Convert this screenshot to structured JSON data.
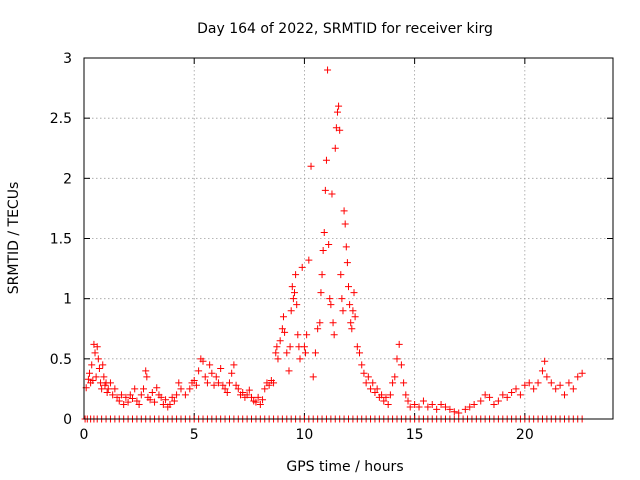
{
  "chart_data": {
    "type": "scatter",
    "title": "Day 164 of 2022, SRMTID for receiver kirg",
    "xlabel": "GPS time / hours",
    "ylabel": "SRMTID / TECUs",
    "xlim": [
      0,
      24
    ],
    "ylim": [
      0,
      3
    ],
    "xticks": [
      0,
      5,
      10,
      15,
      20
    ],
    "xtick_labels": [
      "0",
      "5",
      "10",
      "15",
      "20"
    ],
    "yticks": [
      0,
      0.5,
      1,
      1.5,
      2,
      2.5,
      3
    ],
    "ytick_labels": [
      "0",
      "0.5",
      "1",
      "1.5",
      "2",
      "2.5",
      "3"
    ],
    "grid": true,
    "marker": "+",
    "color": "#ff0000",
    "series": [
      {
        "name": "SRMTID",
        "points": [
          [
            0.1,
            0.26
          ],
          [
            0.2,
            0.33
          ],
          [
            0.25,
            0.38
          ],
          [
            0.3,
            0.3
          ],
          [
            0.35,
            0.45
          ],
          [
            0.4,
            0.32
          ],
          [
            0.45,
            0.62
          ],
          [
            0.5,
            0.55
          ],
          [
            0.55,
            0.35
          ],
          [
            0.6,
            0.6
          ],
          [
            0.65,
            0.5
          ],
          [
            0.7,
            0.42
          ],
          [
            0.75,
            0.3
          ],
          [
            0.8,
            0.25
          ],
          [
            0.85,
            0.45
          ],
          [
            0.9,
            0.35
          ],
          [
            0.95,
            0.28
          ],
          [
            1.0,
            0.3
          ],
          [
            1.05,
            0.22
          ],
          [
            1.1,
            0.25
          ],
          [
            1.2,
            0.3
          ],
          [
            1.3,
            0.2
          ],
          [
            1.4,
            0.25
          ],
          [
            1.5,
            0.18
          ],
          [
            1.6,
            0.15
          ],
          [
            1.7,
            0.2
          ],
          [
            1.8,
            0.12
          ],
          [
            1.9,
            0.18
          ],
          [
            2.0,
            0.14
          ],
          [
            2.1,
            0.2
          ],
          [
            2.2,
            0.17
          ],
          [
            2.3,
            0.25
          ],
          [
            2.4,
            0.15
          ],
          [
            2.5,
            0.12
          ],
          [
            2.6,
            0.2
          ],
          [
            2.7,
            0.25
          ],
          [
            2.8,
            0.4
          ],
          [
            2.85,
            0.35
          ],
          [
            2.9,
            0.18
          ],
          [
            3.0,
            0.16
          ],
          [
            3.1,
            0.22
          ],
          [
            3.2,
            0.14
          ],
          [
            3.3,
            0.26
          ],
          [
            3.4,
            0.2
          ],
          [
            3.5,
            0.18
          ],
          [
            3.6,
            0.12
          ],
          [
            3.7,
            0.16
          ],
          [
            3.8,
            0.1
          ],
          [
            3.9,
            0.12
          ],
          [
            4.0,
            0.18
          ],
          [
            4.1,
            0.15
          ],
          [
            4.2,
            0.2
          ],
          [
            4.3,
            0.3
          ],
          [
            4.4,
            0.25
          ],
          [
            4.6,
            0.2
          ],
          [
            4.8,
            0.25
          ],
          [
            4.9,
            0.3
          ],
          [
            5.0,
            0.32
          ],
          [
            5.1,
            0.28
          ],
          [
            5.2,
            0.4
          ],
          [
            5.3,
            0.5
          ],
          [
            5.4,
            0.48
          ],
          [
            5.5,
            0.35
          ],
          [
            5.6,
            0.3
          ],
          [
            5.7,
            0.45
          ],
          [
            5.8,
            0.38
          ],
          [
            5.9,
            0.28
          ],
          [
            6.0,
            0.35
          ],
          [
            6.1,
            0.3
          ],
          [
            6.2,
            0.42
          ],
          [
            6.3,
            0.28
          ],
          [
            6.4,
            0.25
          ],
          [
            6.5,
            0.22
          ],
          [
            6.6,
            0.3
          ],
          [
            6.7,
            0.38
          ],
          [
            6.8,
            0.45
          ],
          [
            6.9,
            0.28
          ],
          [
            7.0,
            0.25
          ],
          [
            7.1,
            0.2
          ],
          [
            7.2,
            0.22
          ],
          [
            7.3,
            0.18
          ],
          [
            7.4,
            0.2
          ],
          [
            7.5,
            0.24
          ],
          [
            7.6,
            0.18
          ],
          [
            7.7,
            0.15
          ],
          [
            7.8,
            0.14
          ],
          [
            7.9,
            0.18
          ],
          [
            8.0,
            0.12
          ],
          [
            8.1,
            0.16
          ],
          [
            8.2,
            0.25
          ],
          [
            8.3,
            0.3
          ],
          [
            8.4,
            0.28
          ],
          [
            8.5,
            0.32
          ],
          [
            8.6,
            0.3
          ],
          [
            8.7,
            0.55
          ],
          [
            8.75,
            0.6
          ],
          [
            8.8,
            0.5
          ],
          [
            8.9,
            0.65
          ],
          [
            9.0,
            0.75
          ],
          [
            9.05,
            0.85
          ],
          [
            9.1,
            0.72
          ],
          [
            9.2,
            0.55
          ],
          [
            9.3,
            0.4
          ],
          [
            9.35,
            0.6
          ],
          [
            9.4,
            0.9
          ],
          [
            9.45,
            1.1
          ],
          [
            9.5,
            1.0
          ],
          [
            9.55,
            1.05
          ],
          [
            9.6,
            1.2
          ],
          [
            9.65,
            0.95
          ],
          [
            9.7,
            0.7
          ],
          [
            9.75,
            0.6
          ],
          [
            9.8,
            0.5
          ],
          [
            9.9,
            1.26
          ],
          [
            10.0,
            0.6
          ],
          [
            10.05,
            0.55
          ],
          [
            10.1,
            0.7
          ],
          [
            10.2,
            1.32
          ],
          [
            10.3,
            2.1
          ],
          [
            10.4,
            0.35
          ],
          [
            10.5,
            0.55
          ],
          [
            10.6,
            0.75
          ],
          [
            10.7,
            0.8
          ],
          [
            10.75,
            1.05
          ],
          [
            10.8,
            1.2
          ],
          [
            10.85,
            1.4
          ],
          [
            10.9,
            1.55
          ],
          [
            10.95,
            1.9
          ],
          [
            11.0,
            2.15
          ],
          [
            11.05,
            2.9
          ],
          [
            11.1,
            1.45
          ],
          [
            11.15,
            1.0
          ],
          [
            11.2,
            0.95
          ],
          [
            11.25,
            1.87
          ],
          [
            11.3,
            0.8
          ],
          [
            11.35,
            0.7
          ],
          [
            11.4,
            2.25
          ],
          [
            11.45,
            2.42
          ],
          [
            11.5,
            2.55
          ],
          [
            11.55,
            2.6
          ],
          [
            11.6,
            2.4
          ],
          [
            11.65,
            1.2
          ],
          [
            11.7,
            1.0
          ],
          [
            11.75,
            0.9
          ],
          [
            11.8,
            1.73
          ],
          [
            11.85,
            1.62
          ],
          [
            11.9,
            1.43
          ],
          [
            11.95,
            1.3
          ],
          [
            12.0,
            1.1
          ],
          [
            12.05,
            0.95
          ],
          [
            12.1,
            0.8
          ],
          [
            12.15,
            0.75
          ],
          [
            12.2,
            0.9
          ],
          [
            12.25,
            1.05
          ],
          [
            12.3,
            0.85
          ],
          [
            12.4,
            0.6
          ],
          [
            12.5,
            0.55
          ],
          [
            12.6,
            0.45
          ],
          [
            12.7,
            0.38
          ],
          [
            12.8,
            0.3
          ],
          [
            12.9,
            0.35
          ],
          [
            13.0,
            0.25
          ],
          [
            13.1,
            0.3
          ],
          [
            13.2,
            0.22
          ],
          [
            13.3,
            0.25
          ],
          [
            13.4,
            0.18
          ],
          [
            13.5,
            0.2
          ],
          [
            13.6,
            0.15
          ],
          [
            13.7,
            0.18
          ],
          [
            13.8,
            0.12
          ],
          [
            13.9,
            0.2
          ],
          [
            14.0,
            0.3
          ],
          [
            14.1,
            0.35
          ],
          [
            14.2,
            0.5
          ],
          [
            14.3,
            0.62
          ],
          [
            14.4,
            0.45
          ],
          [
            14.5,
            0.3
          ],
          [
            14.6,
            0.2
          ],
          [
            14.7,
            0.15
          ],
          [
            14.8,
            0.1
          ],
          [
            15.0,
            0.12
          ],
          [
            15.2,
            0.1
          ],
          [
            15.4,
            0.15
          ],
          [
            15.6,
            0.1
          ],
          [
            15.8,
            0.12
          ],
          [
            16.0,
            0.08
          ],
          [
            16.2,
            0.12
          ],
          [
            16.4,
            0.1
          ],
          [
            16.6,
            0.08
          ],
          [
            16.8,
            0.06
          ],
          [
            17.0,
            0.05
          ],
          [
            17.3,
            0.08
          ],
          [
            17.5,
            0.1
          ],
          [
            17.7,
            0.12
          ],
          [
            18.0,
            0.15
          ],
          [
            18.2,
            0.2
          ],
          [
            18.4,
            0.18
          ],
          [
            18.6,
            0.12
          ],
          [
            18.8,
            0.15
          ],
          [
            19.0,
            0.2
          ],
          [
            19.2,
            0.18
          ],
          [
            19.4,
            0.22
          ],
          [
            19.6,
            0.25
          ],
          [
            19.8,
            0.2
          ],
          [
            20.0,
            0.28
          ],
          [
            20.2,
            0.3
          ],
          [
            20.4,
            0.25
          ],
          [
            20.6,
            0.3
          ],
          [
            20.8,
            0.4
          ],
          [
            20.9,
            0.48
          ],
          [
            21.0,
            0.35
          ],
          [
            21.2,
            0.3
          ],
          [
            21.4,
            0.25
          ],
          [
            21.6,
            0.28
          ],
          [
            21.8,
            0.2
          ],
          [
            22.0,
            0.3
          ],
          [
            22.2,
            0.25
          ],
          [
            22.4,
            0.35
          ],
          [
            22.6,
            0.38
          ]
        ],
        "zero_points": [
          0.05,
          0.15,
          0.3,
          0.45,
          0.6,
          0.8,
          1.0,
          1.2,
          1.4,
          1.6,
          1.8,
          2.0,
          2.2,
          2.4,
          2.6,
          2.8,
          3.0,
          3.2,
          3.4,
          3.6,
          3.8,
          4.0,
          4.2,
          4.4,
          4.6,
          4.8,
          5.0,
          5.2,
          5.4,
          5.6,
          5.8,
          6.0,
          6.2,
          6.4,
          6.6,
          6.8,
          7.0,
          7.2,
          7.4,
          7.6,
          7.8,
          8.0,
          8.2,
          8.4,
          8.6,
          8.8,
          9.0,
          9.2,
          9.4,
          9.6,
          9.8,
          10.0,
          10.2,
          10.4,
          10.6,
          10.8,
          11.0,
          11.2,
          11.4,
          11.6,
          11.8,
          12.0,
          12.2,
          12.4,
          12.6,
          12.8,
          13.0,
          13.2,
          13.4,
          13.6,
          13.8,
          14.0,
          14.2,
          14.4,
          14.6,
          14.8,
          15.0,
          15.2,
          15.4,
          15.6,
          15.8,
          16.0,
          16.2,
          16.4,
          16.6,
          16.8,
          17.0,
          17.2,
          17.4,
          17.6,
          17.8,
          18.0,
          18.2,
          18.4,
          18.6,
          18.8,
          19.0,
          19.2,
          19.4,
          19.6,
          19.8,
          20.0,
          20.2,
          20.4,
          20.6,
          20.8,
          21.0,
          21.2,
          21.4,
          21.6,
          21.8,
          22.0,
          22.2,
          22.4,
          22.6
        ]
      }
    ]
  }
}
